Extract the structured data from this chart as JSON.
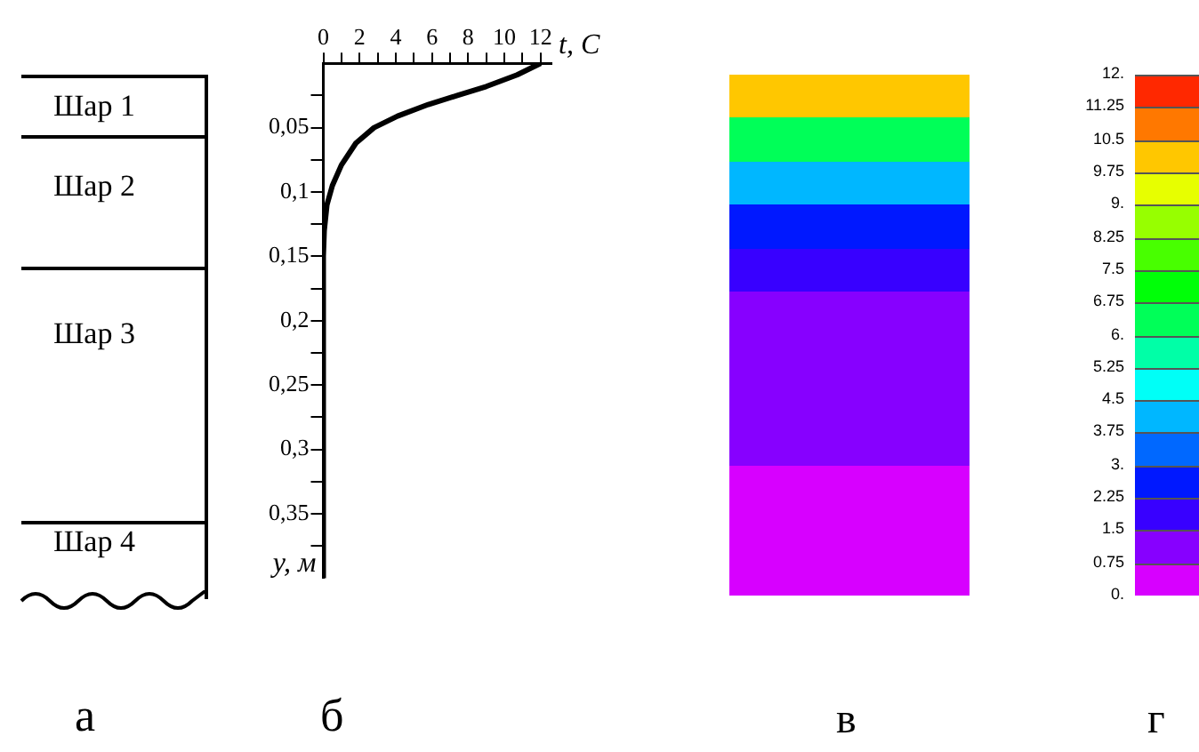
{
  "chart_data": [
    {
      "type": "other",
      "annotations": [
        "Шар 1",
        "Шар 2",
        "Шар 3",
        "Шар 4",
        "а"
      ]
    },
    {
      "type": "line",
      "xlabel": "t, C",
      "ylabel": "y, м",
      "annotations": [
        "б"
      ],
      "xlim": [
        0,
        12.6
      ],
      "ylim": [
        0.4,
        0
      ],
      "xticks": [
        {
          "value": 0,
          "label": "0"
        },
        {
          "value": 1,
          "label": null
        },
        2,
        {
          "value": 3,
          "label": null
        },
        4,
        {
          "value": 5,
          "label": null
        },
        6,
        {
          "value": 7,
          "label": null
        },
        8,
        {
          "value": 9,
          "label": null
        },
        10,
        {
          "value": 11,
          "label": null
        },
        12
      ],
      "yticks": [
        {
          "value": 0.025,
          "label": null
        },
        {
          "value": 0.05,
          "label": "0,05"
        },
        {
          "value": 0.075,
          "label": null
        },
        {
          "value": 0.1,
          "label": "0,1"
        },
        {
          "value": 0.125,
          "label": null
        },
        {
          "value": 0.15,
          "label": "0,15"
        },
        {
          "value": 0.175,
          "label": null
        },
        {
          "value": 0.2,
          "label": "0,2"
        },
        {
          "value": 0.225,
          "label": null
        },
        {
          "value": 0.25,
          "label": "0,25"
        },
        {
          "value": 0.275,
          "label": null
        },
        {
          "value": 0.3,
          "label": "0,3"
        },
        {
          "value": 0.325,
          "label": null
        },
        {
          "value": 0.35,
          "label": "0,35"
        },
        {
          "value": 0.375,
          "label": null
        }
      ],
      "series": [
        {
          "color": "#000000",
          "x": [
            12,
            10.7,
            9,
            7.4,
            5.8,
            4.1,
            2.8,
            1.8,
            1,
            0.5,
            0.2,
            0.05,
            0,
            0
          ],
          "values": [
            0,
            0.009,
            0.018,
            0.025,
            0.032,
            0.041,
            0.05,
            0.062,
            0.079,
            0.095,
            0.11,
            0.13,
            0.15,
            0.4
          ]
        }
      ]
    },
    {
      "type": "heatmap",
      "annotations": [
        "в",
        "г"
      ],
      "categories": [
        null
      ],
      "y_categories": [
        null,
        null,
        null,
        null,
        null,
        null,
        null,
        null,
        null,
        null,
        null,
        null
      ],
      "cells": [
        [
          10.5
        ],
        [
          6.5
        ],
        [
          3.8
        ],
        [
          2.3
        ],
        [
          1.9
        ],
        [
          1.5
        ],
        [
          1.2
        ],
        [
          1
        ],
        [
          0.8
        ],
        [
          0.6
        ],
        [
          0.4
        ],
        [
          0.2
        ]
      ],
      "clim": [
        0,
        12
      ],
      "cticks": [
        {
          "value": 0,
          "label": "0."
        },
        0.75,
        1.5,
        2.25,
        {
          "value": 3,
          "label": "3."
        },
        3.75,
        4.5,
        5.25,
        {
          "value": 6,
          "label": "6."
        },
        6.75,
        7.5,
        8.25,
        {
          "value": 9,
          "label": "9."
        },
        9.75,
        10.5,
        11.25,
        {
          "value": 12,
          "label": "12."
        }
      ]
    }
  ]
}
